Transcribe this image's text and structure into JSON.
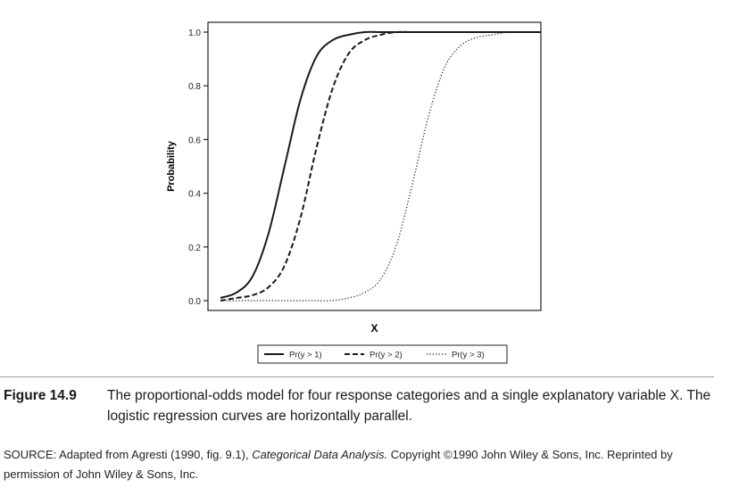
{
  "chart_data": {
    "type": "line",
    "xlabel": "X",
    "ylabel": "Probability",
    "x_ticks_shown": false,
    "x": [
      0,
      0.05,
      0.1,
      0.15,
      0.2,
      0.25,
      0.3,
      0.35,
      0.4,
      0.45,
      0.5,
      0.55,
      0.6,
      0.65,
      0.7,
      0.75,
      0.8,
      0.85,
      0.9,
      0.95,
      1.0
    ],
    "ylim": [
      0,
      1
    ],
    "yticks": [
      "0.0",
      "0.2",
      "0.4",
      "0.6",
      "0.8",
      "1.0"
    ],
    "yticks_values": [
      0,
      0.2,
      0.4,
      0.6,
      0.8,
      1.0
    ],
    "grid": false,
    "legend_position": "bottom",
    "series": [
      {
        "name": "Pr(y > 1)",
        "style": "solid",
        "values": [
          0.01,
          0.03,
          0.09,
          0.25,
          0.5,
          0.75,
          0.91,
          0.97,
          0.99,
          1.0,
          1.0,
          1.0,
          1.0,
          1.0,
          1.0,
          1.0,
          1.0,
          1.0,
          1.0,
          1.0,
          1.0
        ]
      },
      {
        "name": "Pr(y > 2)",
        "style": "dashed",
        "values": [
          0.0,
          0.01,
          0.02,
          0.05,
          0.13,
          0.31,
          0.57,
          0.79,
          0.92,
          0.97,
          0.99,
          1.0,
          1.0,
          1.0,
          1.0,
          1.0,
          1.0,
          1.0,
          1.0,
          1.0,
          1.0
        ]
      },
      {
        "name": "Pr(y > 3)",
        "style": "dotted",
        "values": [
          0.0,
          0.0,
          0.0,
          0.0,
          0.0,
          0.0,
          0.0,
          0.0,
          0.01,
          0.03,
          0.08,
          0.21,
          0.44,
          0.69,
          0.87,
          0.95,
          0.98,
          0.99,
          1.0,
          1.0,
          1.0
        ]
      }
    ]
  },
  "caption": {
    "label": "Figure 14.9",
    "text": "The proportional-odds model for four response categories and a single explanatory variable X. The logistic regression curves are horizontally parallel."
  },
  "source": {
    "prefix": "SOURCE: Adapted from Agresti (1990, fig. 9.1), ",
    "book": "Categorical Data Analysis.",
    "suffix": "  Copyright ©1990 John Wiley & Sons, Inc. Reprinted by permission of John Wiley & Sons, Inc."
  }
}
